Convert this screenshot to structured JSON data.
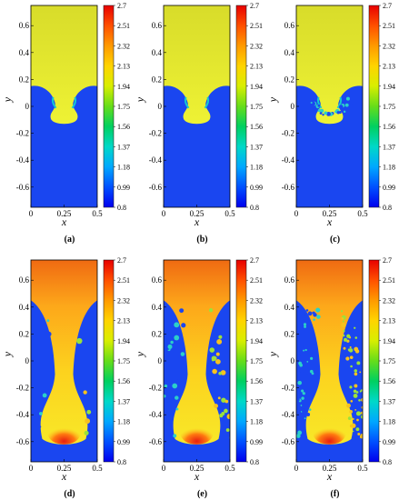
{
  "chart_data": [
    {
      "type": "heatmap",
      "panel": "(a)",
      "xlabel": "x",
      "ylabel": "y",
      "x_ticks": [
        "0",
        "0.25",
        "0.5"
      ],
      "y_ticks": [
        "0.6",
        "0.4",
        "0.2",
        "0",
        "-0.2",
        "-0.4",
        "-0.6"
      ],
      "xlim": [
        0,
        0.5
      ],
      "ylim": [
        -0.75,
        0.75
      ],
      "colorbar": [
        "2.7",
        "2.51",
        "2.32",
        "2.13",
        "1.94",
        "1.75",
        "1.56",
        "1.37",
        "1.18",
        "0.99",
        "0.8"
      ],
      "interface_depth": -0.15
    },
    {
      "type": "heatmap",
      "panel": "(b)",
      "xlabel": "x",
      "ylabel": "y",
      "x_ticks": [
        "0",
        "0.25",
        "0.5"
      ],
      "y_ticks": [
        "0.6",
        "0.4",
        "0.2",
        "0",
        "-0.2",
        "-0.4",
        "-0.6"
      ],
      "xlim": [
        0,
        0.5
      ],
      "ylim": [
        -0.75,
        0.75
      ],
      "colorbar": [
        "2.7",
        "2.51",
        "2.32",
        "2.13",
        "1.94",
        "1.75",
        "1.56",
        "1.37",
        "1.18",
        "0.99",
        "0.8"
      ],
      "interface_depth": -0.15
    },
    {
      "type": "heatmap",
      "panel": "(c)",
      "xlabel": "x",
      "ylabel": "y",
      "x_ticks": [
        "0",
        "0.25",
        "0.5"
      ],
      "y_ticks": [
        "0.6",
        "0.4",
        "0.2",
        "0",
        "-0.2",
        "-0.4",
        "-0.6"
      ],
      "xlim": [
        0,
        0.5
      ],
      "ylim": [
        -0.75,
        0.75
      ],
      "colorbar": [
        "2.7",
        "2.51",
        "2.32",
        "2.13",
        "1.94",
        "1.75",
        "1.56",
        "1.37",
        "1.18",
        "0.99",
        "0.8"
      ],
      "interface_depth": -0.15
    },
    {
      "type": "heatmap",
      "panel": "(d)",
      "xlabel": "x",
      "ylabel": "y",
      "x_ticks": [
        "0",
        "0.25",
        "0.5"
      ],
      "y_ticks": [
        "0.6",
        "0.4",
        "0.2",
        "0",
        "-0.2",
        "-0.4",
        "-0.6"
      ],
      "xlim": [
        0,
        0.5
      ],
      "ylim": [
        -0.75,
        0.75
      ],
      "colorbar": [
        "2.7",
        "2.51",
        "2.32",
        "2.13",
        "1.94",
        "1.75",
        "1.56",
        "1.37",
        "1.18",
        "0.99",
        "0.8"
      ],
      "interface_depth": -0.6
    },
    {
      "type": "heatmap",
      "panel": "(e)",
      "xlabel": "x",
      "ylabel": "y",
      "x_ticks": [
        "0",
        "0.25",
        "0.5"
      ],
      "y_ticks": [
        "0.6",
        "0.4",
        "0.2",
        "0",
        "-0.2",
        "-0.4",
        "-0.6"
      ],
      "xlim": [
        0,
        0.5
      ],
      "ylim": [
        -0.75,
        0.75
      ],
      "colorbar": [
        "2.7",
        "2.51",
        "2.32",
        "2.13",
        "1.94",
        "1.75",
        "1.56",
        "1.37",
        "1.18",
        "0.99",
        "0.8"
      ],
      "interface_depth": -0.6
    },
    {
      "type": "heatmap",
      "panel": "(f)",
      "xlabel": "x",
      "ylabel": "y",
      "x_ticks": [
        "0",
        "0.25",
        "0.5"
      ],
      "y_ticks": [
        "0.6",
        "0.4",
        "0.2",
        "0",
        "-0.2",
        "-0.4",
        "-0.6"
      ],
      "xlim": [
        0,
        0.5
      ],
      "ylim": [
        -0.75,
        0.75
      ],
      "colorbar": [
        "2.7",
        "2.51",
        "2.32",
        "2.13",
        "1.94",
        "1.75",
        "1.56",
        "1.37",
        "1.18",
        "0.99",
        "0.8"
      ],
      "interface_depth": -0.6
    }
  ]
}
